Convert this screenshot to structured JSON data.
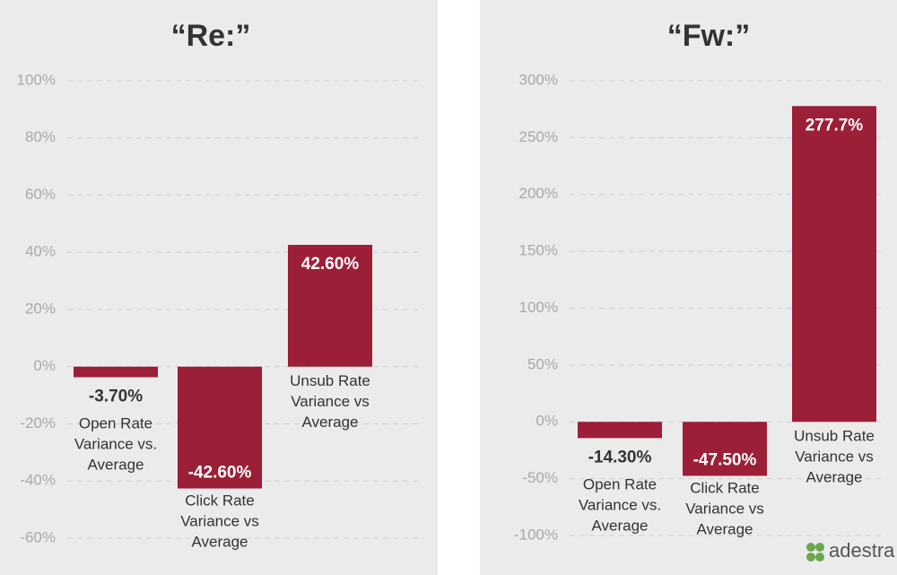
{
  "chart_data": [
    {
      "type": "bar",
      "title": "“Re:”",
      "categories": [
        "Open Rate\nVariance vs.\nAverage",
        "Click Rate\nVariance vs\nAverage",
        "Unsub Rate\nVariance vs\nAverage"
      ],
      "values": [
        -3.7,
        -42.6,
        42.6
      ],
      "value_labels": [
        "-3.70%",
        "-42.60%",
        "42.60%"
      ],
      "color": "#9b1f36",
      "ylim": [
        -60,
        100
      ],
      "yticks": [
        {
          "value": -60,
          "label": "-60%"
        },
        {
          "value": -40,
          "label": "-40%"
        },
        {
          "value": -20,
          "label": "-20%"
        },
        {
          "value": 0,
          "label": "0%"
        },
        {
          "value": 20,
          "label": "20%"
        },
        {
          "value": 40,
          "label": "40%"
        },
        {
          "value": 60,
          "label": "60%"
        },
        {
          "value": 80,
          "label": "80%"
        },
        {
          "value": 100,
          "label": "100%"
        }
      ],
      "grid": true
    },
    {
      "type": "bar",
      "title": "“Fw:”",
      "categories": [
        "Open Rate\nVariance vs.\nAverage",
        "Click Rate\nVariance vs\nAverage",
        "Unsub Rate\nVariance vs\nAverage"
      ],
      "values": [
        -14.3,
        -47.5,
        277.7
      ],
      "value_labels": [
        "-14.30%",
        "-47.50%",
        "277.7%"
      ],
      "color": "#9b1f36",
      "ylim": [
        -100,
        300
      ],
      "yticks": [
        {
          "value": -100,
          "label": "-100%"
        },
        {
          "value": -50,
          "label": "-50%"
        },
        {
          "value": 0,
          "label": "0%"
        },
        {
          "value": 50,
          "label": "50%"
        },
        {
          "value": 100,
          "label": "100%"
        },
        {
          "value": 150,
          "label": "150%"
        },
        {
          "value": 200,
          "label": "200%"
        },
        {
          "value": 250,
          "label": "250%"
        },
        {
          "value": 300,
          "label": "300%"
        }
      ],
      "grid": true
    }
  ],
  "logo": "adestra"
}
